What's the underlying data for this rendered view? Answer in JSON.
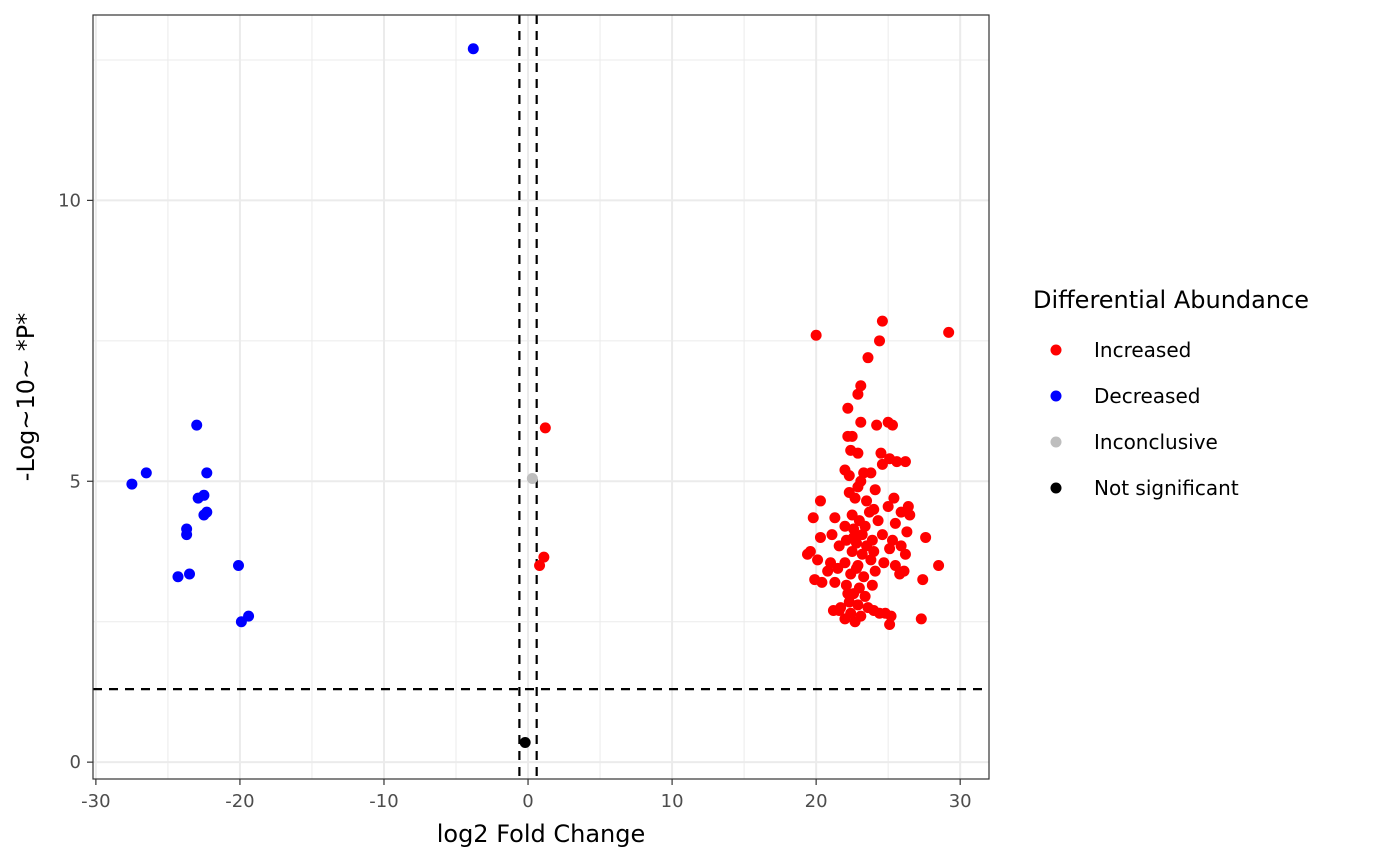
{
  "chart_data": {
    "type": "scatter",
    "title": "",
    "xlabel": "log2 Fold Change",
    "ylabel": "-Log~10~ *P*",
    "xlim": [
      -30.2,
      32
    ],
    "ylim": [
      -0.3,
      13.3
    ],
    "x_ticks": [
      -30,
      -20,
      -10,
      0,
      10,
      20,
      30
    ],
    "y_ticks": [
      0,
      5,
      10
    ],
    "grid": true,
    "thresholds": {
      "log2fc": [
        -0.6,
        0.6
      ],
      "neglog10p": 1.3
    },
    "legend": {
      "title": "Differential Abundance",
      "position": "right",
      "entries": [
        {
          "label": "Increased",
          "color": "#ff0000"
        },
        {
          "label": "Decreased",
          "color": "#0000ff"
        },
        {
          "label": "Inconclusive",
          "color": "#bebebe"
        },
        {
          "label": "Not significant",
          "color": "#000000"
        }
      ]
    },
    "series": [
      {
        "name": "Decreased",
        "color": "#0000ff",
        "points": [
          [
            -3.8,
            12.7
          ],
          [
            -23.0,
            6.0
          ],
          [
            -26.5,
            5.15
          ],
          [
            -27.5,
            4.95
          ],
          [
            -22.3,
            5.15
          ],
          [
            -22.5,
            4.75
          ],
          [
            -22.9,
            4.7
          ],
          [
            -22.3,
            4.45
          ],
          [
            -22.5,
            4.4
          ],
          [
            -23.7,
            4.15
          ],
          [
            -23.7,
            4.05
          ],
          [
            -20.1,
            3.5
          ],
          [
            -23.5,
            3.35
          ],
          [
            -24.3,
            3.3
          ],
          [
            -19.4,
            2.6
          ],
          [
            -19.9,
            2.5
          ]
        ]
      },
      {
        "name": "Increased",
        "color": "#ff0000",
        "points": [
          [
            1.2,
            5.95
          ],
          [
            1.1,
            3.65
          ],
          [
            0.8,
            3.5
          ],
          [
            24.6,
            7.85
          ],
          [
            20.0,
            7.6
          ],
          [
            29.2,
            7.65
          ],
          [
            24.4,
            7.5
          ],
          [
            23.6,
            7.2
          ],
          [
            23.1,
            6.7
          ],
          [
            22.9,
            6.55
          ],
          [
            22.2,
            6.3
          ],
          [
            23.1,
            6.05
          ],
          [
            24.2,
            6.0
          ],
          [
            25.0,
            6.05
          ],
          [
            25.3,
            6.0
          ],
          [
            22.2,
            5.8
          ],
          [
            22.5,
            5.8
          ],
          [
            22.4,
            5.55
          ],
          [
            22.9,
            5.5
          ],
          [
            24.5,
            5.5
          ],
          [
            25.1,
            5.4
          ],
          [
            25.6,
            5.35
          ],
          [
            26.2,
            5.35
          ],
          [
            22.0,
            5.2
          ],
          [
            22.3,
            5.1
          ],
          [
            23.1,
            5.0
          ],
          [
            23.8,
            5.15
          ],
          [
            24.6,
            5.3
          ],
          [
            24.1,
            4.85
          ],
          [
            22.3,
            4.8
          ],
          [
            22.7,
            4.7
          ],
          [
            23.5,
            4.65
          ],
          [
            25.4,
            4.7
          ],
          [
            26.4,
            4.55
          ],
          [
            20.3,
            4.65
          ],
          [
            21.3,
            4.35
          ],
          [
            22.5,
            4.4
          ],
          [
            23.0,
            4.3
          ],
          [
            24.0,
            4.5
          ],
          [
            25.0,
            4.55
          ],
          [
            25.9,
            4.45
          ],
          [
            26.5,
            4.4
          ],
          [
            19.8,
            4.35
          ],
          [
            22.0,
            4.2
          ],
          [
            22.6,
            4.15
          ],
          [
            23.4,
            4.2
          ],
          [
            24.3,
            4.3
          ],
          [
            25.5,
            4.25
          ],
          [
            26.3,
            4.1
          ],
          [
            27.6,
            4.0
          ],
          [
            20.3,
            4.0
          ],
          [
            21.1,
            4.05
          ],
          [
            22.1,
            3.95
          ],
          [
            22.8,
            3.9
          ],
          [
            23.9,
            3.95
          ],
          [
            24.6,
            4.05
          ],
          [
            25.3,
            3.95
          ],
          [
            25.9,
            3.85
          ],
          [
            21.6,
            3.85
          ],
          [
            22.5,
            3.75
          ],
          [
            23.2,
            3.7
          ],
          [
            24.0,
            3.75
          ],
          [
            25.1,
            3.8
          ],
          [
            26.2,
            3.7
          ],
          [
            19.4,
            3.7
          ],
          [
            19.6,
            3.75
          ],
          [
            20.1,
            3.6
          ],
          [
            21.0,
            3.55
          ],
          [
            22.0,
            3.55
          ],
          [
            22.9,
            3.5
          ],
          [
            23.8,
            3.6
          ],
          [
            24.7,
            3.55
          ],
          [
            25.5,
            3.5
          ],
          [
            26.1,
            3.4
          ],
          [
            28.5,
            3.5
          ],
          [
            20.8,
            3.4
          ],
          [
            21.5,
            3.45
          ],
          [
            22.4,
            3.35
          ],
          [
            23.3,
            3.3
          ],
          [
            24.1,
            3.4
          ],
          [
            25.8,
            3.35
          ],
          [
            19.9,
            3.25
          ],
          [
            20.4,
            3.2
          ],
          [
            21.3,
            3.2
          ],
          [
            22.1,
            3.15
          ],
          [
            23.0,
            3.1
          ],
          [
            23.9,
            3.15
          ],
          [
            27.4,
            3.25
          ],
          [
            22.6,
            3.0
          ],
          [
            23.4,
            2.95
          ],
          [
            22.3,
            2.85
          ],
          [
            22.9,
            2.8
          ],
          [
            23.6,
            2.75
          ],
          [
            21.2,
            2.7
          ],
          [
            21.6,
            2.7
          ],
          [
            22.4,
            2.65
          ],
          [
            23.1,
            2.6
          ],
          [
            24.0,
            2.7
          ],
          [
            24.8,
            2.65
          ],
          [
            25.2,
            2.6
          ],
          [
            22.0,
            2.55
          ],
          [
            22.7,
            2.5
          ],
          [
            25.1,
            2.45
          ],
          [
            27.3,
            2.55
          ],
          [
            21.7,
            2.75
          ],
          [
            24.4,
            2.65
          ],
          [
            22.6,
            4.0
          ],
          [
            23.2,
            4.05
          ],
          [
            22.8,
            3.45
          ],
          [
            23.5,
            3.85
          ],
          [
            22.2,
            3.0
          ],
          [
            23.7,
            4.45
          ],
          [
            22.9,
            4.9
          ],
          [
            23.3,
            5.15
          ]
        ]
      },
      {
        "name": "Inconclusive",
        "color": "#bebebe",
        "points": [
          [
            0.3,
            5.05
          ]
        ]
      },
      {
        "name": "Not significant",
        "color": "#000000",
        "points": [
          [
            -0.2,
            0.35
          ]
        ]
      }
    ]
  }
}
